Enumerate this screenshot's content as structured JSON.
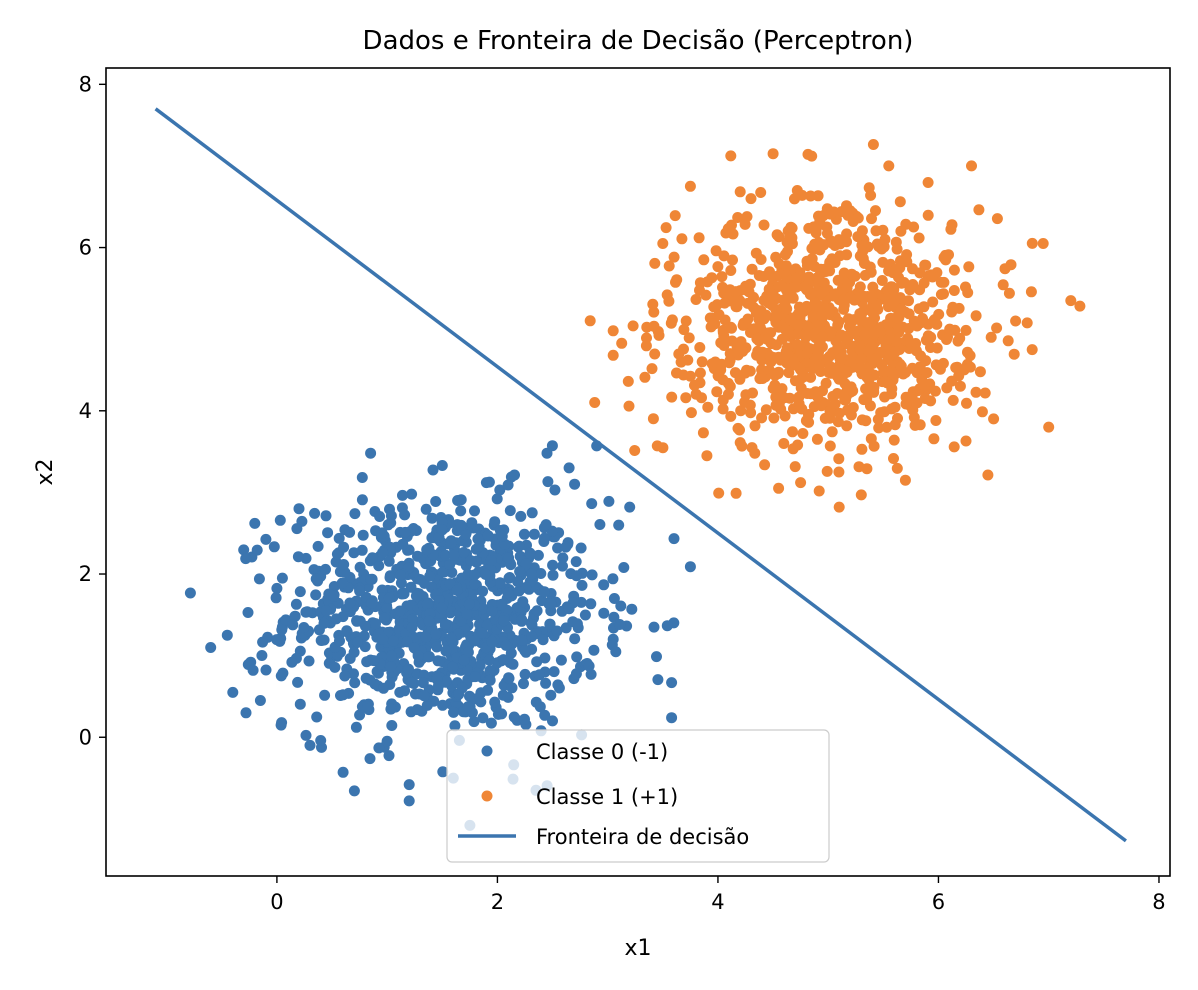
{
  "chart_data": {
    "type": "scatter",
    "title": "Dados e Fronteira de Decisão (Perceptron)",
    "xlabel": "x1",
    "ylabel": "x2",
    "xlim": [
      -1.55,
      8.1
    ],
    "ylim": [
      -1.7,
      8.2
    ],
    "xticks": [
      0,
      2,
      4,
      6,
      8
    ],
    "yticks": [
      0,
      2,
      4,
      6,
      8
    ],
    "grid": false,
    "legend_position": "lower-center",
    "series": [
      {
        "name": "Classe 0 (-1)",
        "kind": "scatter",
        "color": "#3b75af",
        "center": [
          1.5,
          1.5
        ],
        "spread": 0.7,
        "count": 1000,
        "points": [
          [
            -0.6,
            1.1
          ],
          [
            -0.45,
            1.25
          ],
          [
            -0.4,
            0.55
          ],
          [
            -0.28,
            0.3
          ],
          [
            -0.2,
            2.62
          ],
          [
            -0.15,
            0.45
          ],
          [
            0.6,
            -0.43
          ],
          [
            1.2,
            -0.58
          ],
          [
            0.85,
            3.48
          ],
          [
            1.5,
            3.33
          ],
          [
            1.9,
            3.12
          ],
          [
            2.45,
            3.48
          ],
          [
            2.9,
            3.57
          ],
          [
            3.2,
            2.82
          ],
          [
            3.75,
            2.09
          ],
          [
            3.42,
            1.35
          ],
          [
            3.58,
            0.67
          ],
          [
            3.58,
            0.24
          ],
          [
            2.85,
            0.77
          ],
          [
            2.65,
            3.3
          ],
          [
            0.3,
            -0.1
          ],
          [
            1.75,
            -1.08
          ],
          [
            2.35,
            -0.65
          ],
          [
            1.6,
            -0.5
          ],
          [
            0.2,
            2.8
          ],
          [
            3.1,
            2.6
          ],
          [
            2.7,
            3.1
          ],
          [
            0.05,
            1.95
          ],
          [
            3.05,
            1.2
          ],
          [
            2.5,
            0.2
          ]
        ]
      },
      {
        "name": "Classe 1 (+1)",
        "kind": "scatter",
        "color": "#ef8636",
        "center": [
          5.0,
          5.0
        ],
        "spread": 0.7,
        "count": 1000,
        "points": [
          [
            4.5,
            7.15
          ],
          [
            4.85,
            7.12
          ],
          [
            5.55,
            7.0
          ],
          [
            6.3,
            7.0
          ],
          [
            3.75,
            6.75
          ],
          [
            7.2,
            5.35
          ],
          [
            7.0,
            3.8
          ],
          [
            5.1,
            2.82
          ],
          [
            5.3,
            2.97
          ],
          [
            4.55,
            3.05
          ],
          [
            3.45,
            3.57
          ],
          [
            3.05,
            4.98
          ],
          [
            3.05,
            4.68
          ],
          [
            6.25,
            3.63
          ],
          [
            5.7,
            3.15
          ],
          [
            3.5,
            6.05
          ],
          [
            6.95,
            6.05
          ],
          [
            6.85,
            4.75
          ],
          [
            4.75,
            3.12
          ],
          [
            6.5,
            3.9
          ],
          [
            3.9,
            3.45
          ],
          [
            6.7,
            5.1
          ],
          [
            5.2,
            6.45
          ],
          [
            4.3,
            6.6
          ]
        ]
      },
      {
        "name": "Fronteira de decisão",
        "kind": "line",
        "color": "#3b75af",
        "points": [
          [
            -1.1,
            7.7
          ],
          [
            7.7,
            -1.27
          ]
        ]
      }
    ]
  }
}
